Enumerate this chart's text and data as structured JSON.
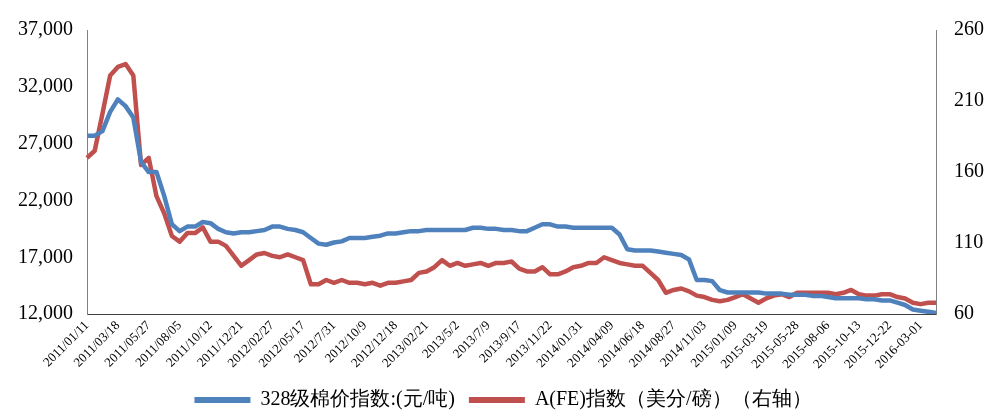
{
  "chart_data": {
    "type": "line",
    "categories": [
      "2011/01/11",
      null,
      null,
      null,
      "2011/03/18",
      null,
      null,
      null,
      "2011/05/27",
      null,
      null,
      null,
      "2011/08/05",
      null,
      null,
      null,
      "2011/10/12",
      null,
      null,
      null,
      "2011/12/21",
      null,
      null,
      null,
      "2012/02/27",
      null,
      null,
      null,
      "2012/05/17",
      null,
      null,
      null,
      "2012/7/31",
      null,
      null,
      null,
      "2012/10/9",
      null,
      null,
      null,
      "2012/12/18",
      null,
      null,
      null,
      "2013/02/21",
      null,
      null,
      null,
      "2013/5/2",
      null,
      null,
      null,
      "2013/7/9",
      null,
      null,
      null,
      "2013/9/17",
      null,
      null,
      null,
      "2013/11/22",
      null,
      null,
      null,
      "2014/01/31",
      null,
      null,
      null,
      "2014/04/09",
      null,
      null,
      null,
      "2014/06/18",
      null,
      null,
      null,
      "2014/08/27",
      null,
      null,
      null,
      "2014/11/03",
      null,
      null,
      null,
      "2015/01/09",
      null,
      null,
      null,
      "2015-03-19",
      null,
      null,
      null,
      "2015-05-28",
      null,
      null,
      null,
      "2015-08-06",
      null,
      null,
      null,
      "2015-10-13",
      null,
      null,
      null,
      "2015-12-22",
      null,
      null,
      null,
      "2016-03-01",
      null,
      null
    ],
    "series": [
      {
        "name": "328级棉价指数:(元/吨)",
        "color": "#4f81bd",
        "values": [
          27700,
          27700,
          28100,
          29800,
          30900,
          30300,
          29300,
          25400,
          24500,
          24500,
          22400,
          19900,
          19300,
          19700,
          19700,
          20100,
          20000,
          19500,
          19200,
          19100,
          19200,
          19200,
          19300,
          19400,
          19700,
          19700,
          19500,
          19400,
          19200,
          18700,
          18200,
          18100,
          18300,
          18400,
          18700,
          18700,
          18700,
          18800,
          18900,
          19100,
          19100,
          19200,
          19300,
          19300,
          19400,
          19400,
          19400,
          19400,
          19400,
          19400,
          19600,
          19600,
          19500,
          19500,
          19400,
          19400,
          19300,
          19300,
          19600,
          19900,
          19900,
          19700,
          19700,
          19600,
          19600,
          19600,
          19600,
          19600,
          19600,
          19000,
          17700,
          17600,
          17600,
          17600,
          17500,
          17400,
          17300,
          17200,
          16800,
          15000,
          15000,
          14900,
          14100,
          13900,
          13900,
          13900,
          13900,
          13900,
          13800,
          13800,
          13800,
          13700,
          13700,
          13700,
          13600,
          13600,
          13500,
          13400,
          13400,
          13400,
          13400,
          13300,
          13300,
          13200,
          13200,
          13000,
          12800,
          12400,
          12300,
          12200,
          12100
        ]
      },
      {
        "name": "A(FE)指数（美分/磅）（右轴）",
        "color": "#c0504d",
        "axis": "y2",
        "values": [
          170,
          175,
          201,
          228,
          234,
          236,
          228,
          165,
          170,
          143,
          131,
          115,
          111,
          117,
          117,
          121,
          111,
          111,
          108,
          101,
          94,
          98,
          102,
          103,
          101,
          100,
          102,
          100,
          98,
          81,
          81,
          84,
          82,
          84,
          82,
          82,
          81,
          82,
          80,
          82,
          82,
          83,
          84,
          89,
          90,
          93,
          98,
          94,
          96,
          94,
          95,
          96,
          94,
          96,
          96,
          97,
          92,
          90,
          90,
          93,
          88,
          88,
          90,
          93,
          94,
          96,
          96,
          100,
          98,
          96,
          95,
          94,
          94,
          89,
          84,
          75,
          77,
          78,
          76,
          73,
          72,
          70,
          69,
          70,
          72,
          74,
          71,
          68,
          71,
          73,
          74,
          72,
          75,
          75,
          75,
          75,
          75,
          74,
          75,
          77,
          74,
          73,
          73,
          74,
          74,
          72,
          71,
          68,
          67,
          68,
          68
        ]
      }
    ],
    "ylim": [
      12000,
      37000
    ],
    "yticks": [
      {
        "value": 12000,
        "label": "12,000"
      },
      {
        "value": 17000,
        "label": "17,000"
      },
      {
        "value": 22000,
        "label": "22,000"
      },
      {
        "value": 27000,
        "label": "27,000"
      },
      {
        "value": 32000,
        "label": "32,000"
      },
      {
        "value": 37000,
        "label": "37,000"
      }
    ],
    "y2lim": [
      60,
      260
    ],
    "y2ticks": [
      60,
      110,
      160,
      210,
      260
    ],
    "grid": false,
    "legend": "bottom",
    "marker": "none",
    "line_style": "solid"
  }
}
